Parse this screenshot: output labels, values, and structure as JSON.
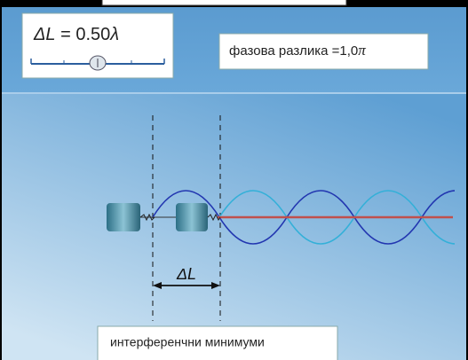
{
  "length_panel": {
    "symbol": "ΔL",
    "equals": " = 0.50",
    "unit": "λ"
  },
  "phase_box": {
    "label": "фазова разлика =1,0",
    "unit": "π"
  },
  "diagram": {
    "path_difference": "ΔL"
  },
  "status_box": {
    "text": "интерференчни минимуми"
  }
}
